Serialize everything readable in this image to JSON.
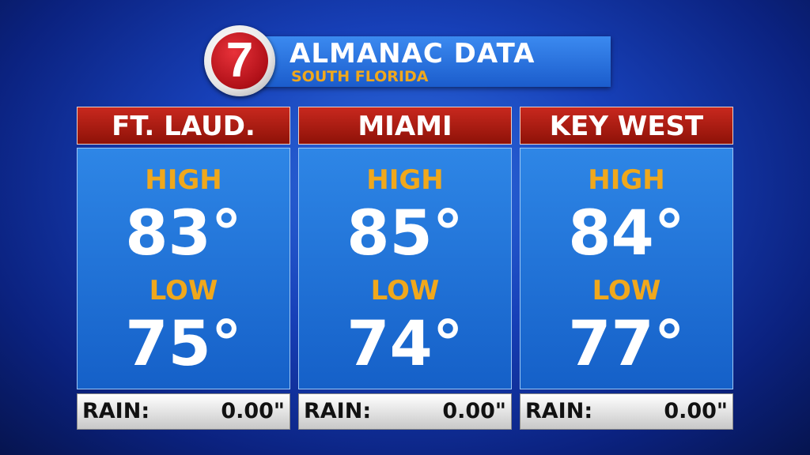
{
  "header": {
    "logo": "7",
    "title": "ALMANAC DATA",
    "subtitle": "SOUTH FLORIDA"
  },
  "cities": [
    {
      "name": "FT. LAUD.",
      "high_label": "HIGH",
      "high": "83°",
      "low_label": "LOW",
      "low": "75°",
      "rain_label": "RAIN:",
      "rain": "0.00\""
    },
    {
      "name": "MIAMI",
      "high_label": "HIGH",
      "high": "85°",
      "low_label": "LOW",
      "low": "74°",
      "rain_label": "RAIN:",
      "rain": "0.00\""
    },
    {
      "name": "KEY WEST",
      "high_label": "HIGH",
      "high": "84°",
      "low_label": "LOW",
      "low": "77°",
      "rain_label": "RAIN:",
      "rain": "0.00\""
    }
  ]
}
